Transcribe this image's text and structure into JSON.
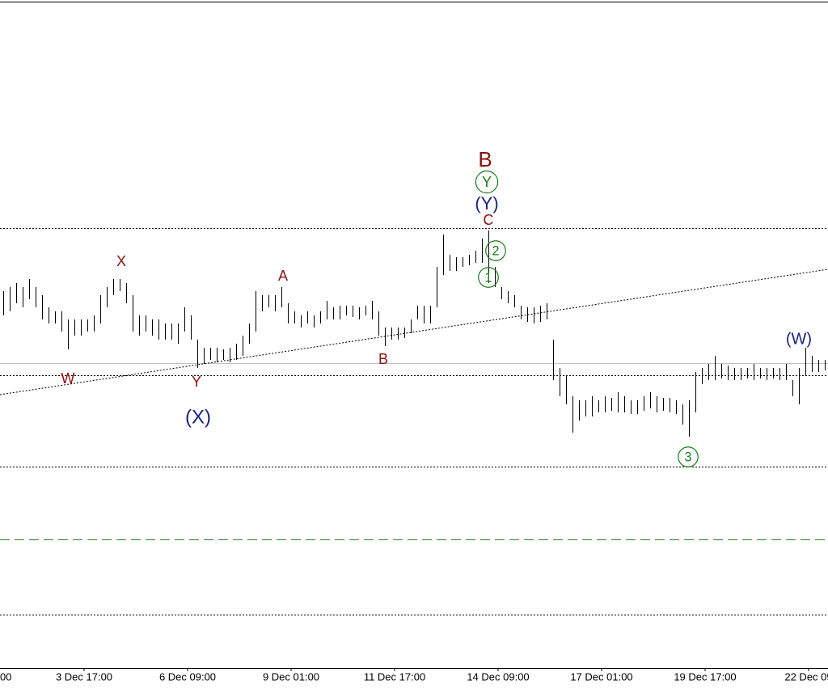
{
  "chart_data": {
    "type": "hl",
    "color": "#000000",
    "xlim": [
      -0.5,
      127.5
    ],
    "ylim": [
      0,
      826
    ],
    "xticks": [
      {
        "value": -3.5,
        "label": "00"
      },
      {
        "value": 12.5,
        "label": "3 Dec 17:00"
      },
      {
        "value": 28.5,
        "label": "6 Dec 09:00"
      },
      {
        "value": 44.5,
        "label": "9 Dec 01:00"
      },
      {
        "value": 60.5,
        "label": "11 Dec 17:00"
      },
      {
        "value": 76.5,
        "label": "14 Dec 09:00"
      },
      {
        "value": 92.5,
        "label": "17 Dec 01:00"
      },
      {
        "value": 108.5,
        "label": "19 Dec 17:00"
      },
      {
        "value": 124.5,
        "label": "22 Dec 09"
      }
    ],
    "highs": [
      466,
      471,
      476,
      471,
      481,
      471,
      461,
      446,
      441,
      441,
      431,
      431,
      431,
      431,
      436,
      461,
      471,
      481,
      481,
      476,
      461,
      436,
      436,
      431,
      431,
      426,
      426,
      426,
      446,
      436,
      406,
      396,
      396,
      396,
      394,
      396,
      401,
      411,
      426,
      466,
      461,
      461,
      461,
      471,
      451,
      441,
      436,
      441,
      436,
      441,
      454,
      446,
      448,
      448,
      448,
      446,
      448,
      454,
      441,
      421,
      421,
      421,
      421,
      431,
      448,
      448,
      448,
      496,
      536,
      511,
      508,
      508,
      511,
      516,
      531,
      541,
      496,
      471,
      466,
      461,
      448,
      446,
      446,
      448,
      451,
      406,
      371,
      361,
      336,
      331,
      331,
      336,
      331,
      336,
      334,
      341,
      336,
      331,
      331,
      336,
      341,
      336,
      334,
      334,
      331,
      326,
      331,
      366,
      371,
      376,
      386,
      376,
      374,
      371,
      371,
      371,
      376,
      371,
      371,
      371,
      371,
      376,
      356,
      371,
      396,
      386,
      381,
      381
    ],
    "lows": [
      436,
      441,
      451,
      446,
      456,
      446,
      431,
      426,
      426,
      416,
      394,
      411,
      411,
      416,
      416,
      426,
      446,
      461,
      466,
      451,
      416,
      411,
      416,
      411,
      406,
      406,
      406,
      401,
      416,
      406,
      371,
      376,
      381,
      378,
      381,
      378,
      381,
      386,
      401,
      416,
      441,
      446,
      441,
      446,
      426,
      426,
      421,
      426,
      421,
      426,
      431,
      431,
      431,
      436,
      434,
      431,
      436,
      431,
      411,
      398,
      406,
      406,
      408,
      414,
      431,
      426,
      426,
      446,
      486,
      491,
      491,
      496,
      498,
      501,
      501,
      476,
      471,
      456,
      451,
      446,
      431,
      428,
      426,
      428,
      431,
      356,
      336,
      326,
      291,
      306,
      311,
      311,
      316,
      316,
      318,
      316,
      316,
      314,
      314,
      318,
      321,
      316,
      318,
      316,
      314,
      301,
      286,
      316,
      351,
      356,
      356,
      358,
      356,
      356,
      356,
      358,
      356,
      358,
      356,
      358,
      356,
      356,
      336,
      326,
      361,
      366,
      366,
      368
    ],
    "levels": [
      {
        "value": 544,
        "style": "dotted",
        "color": "#000000"
      },
      {
        "value": 377,
        "style": "solid",
        "color": "#c0c0c0"
      },
      {
        "value": 362,
        "style": "dotted",
        "color": "#000000"
      },
      {
        "value": 249,
        "style": "dotted",
        "color": "#000000"
      },
      {
        "value": 159,
        "style": "dashed",
        "color": "#2e7d32"
      },
      {
        "value": 66,
        "style": "dotted",
        "color": "#000000"
      }
    ],
    "trendline": {
      "x": [
        -0.5,
        127.5
      ],
      "y": [
        338,
        493
      ]
    },
    "annotations": [
      {
        "text": "B",
        "color": "#8b1010"
      },
      {
        "text": "Y",
        "color": "#1b7a1b",
        "circled": true
      },
      {
        "text": "(Y)",
        "color": "#1a237e"
      },
      {
        "text": "C",
        "color": "#8b1010"
      },
      {
        "text": "2",
        "color": "#1b7a1b",
        "circled": true
      },
      {
        "text": "1",
        "color": "#1b7a1b",
        "circled": true
      },
      {
        "text": "X",
        "color": "#8b1010"
      },
      {
        "text": "A",
        "color": "#8b1010"
      },
      {
        "text": "B",
        "color": "#8b1010"
      },
      {
        "text": "W",
        "color": "#8b1010"
      },
      {
        "text": "Y",
        "color": "#8b1010"
      },
      {
        "text": "(X)",
        "color": "#1a237e"
      },
      {
        "text": "3",
        "color": "#1b7a1b",
        "circled": true
      },
      {
        "text": "(W)",
        "color": "#1a237e"
      }
    ]
  }
}
